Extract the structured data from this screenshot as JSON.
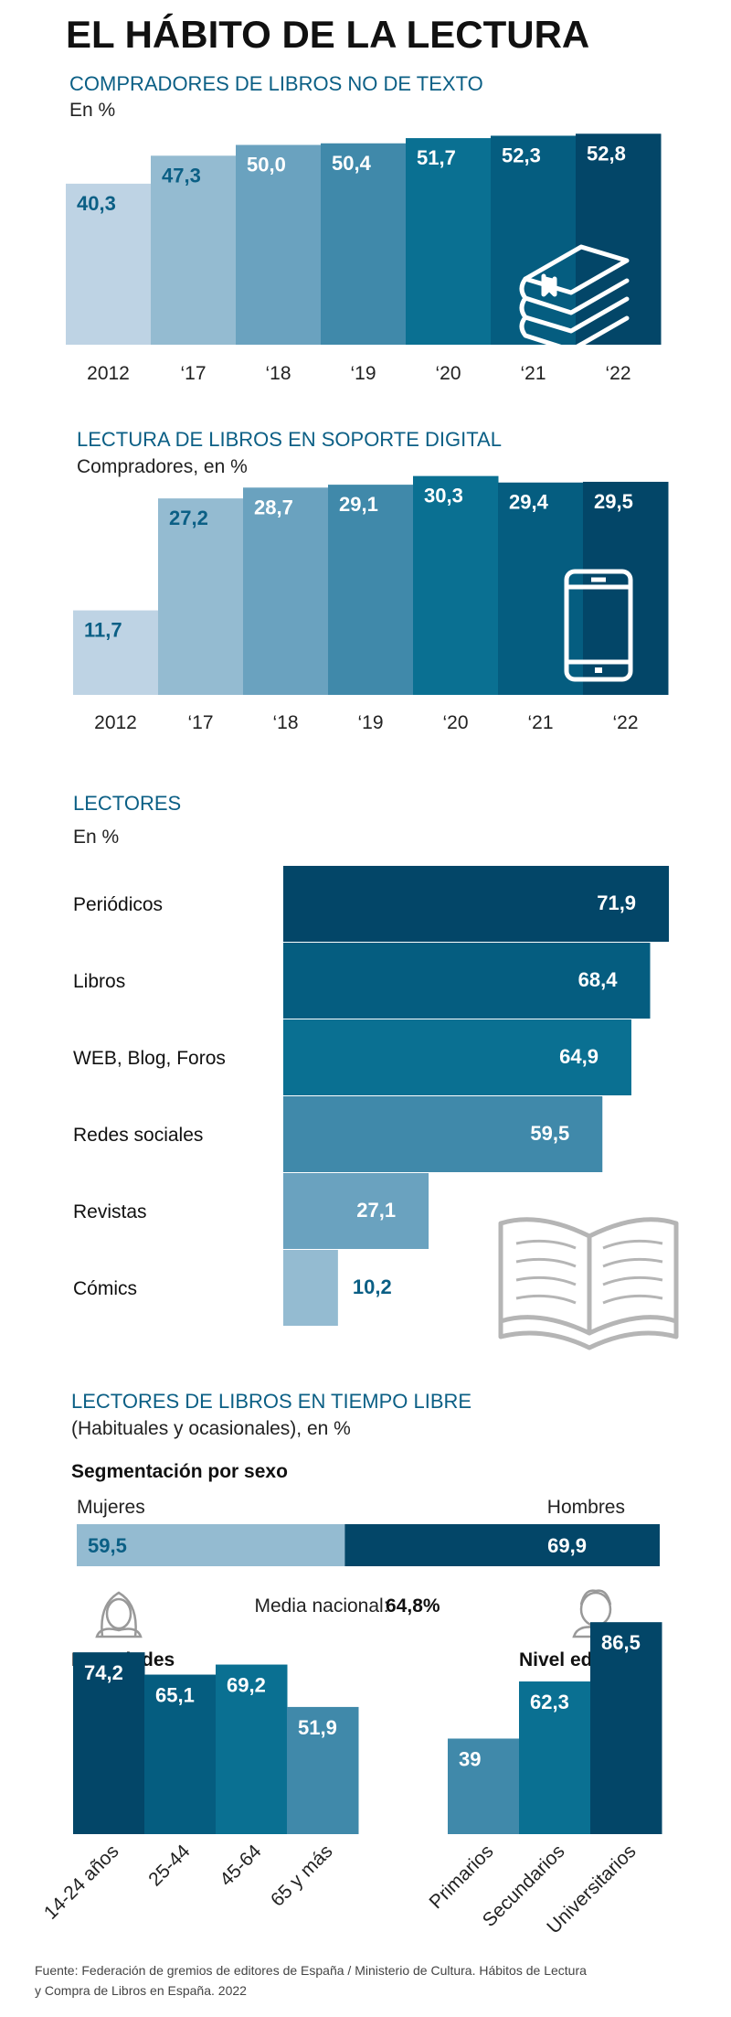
{
  "title": "EL HÁBITO DE LA LECTURA",
  "colors": [
    "#bed3e4",
    "#94bbd1",
    "#6aa2bf",
    "#4089aa",
    "#0a7092",
    "#055d80",
    "#034668"
  ],
  "chart_data": [
    {
      "type": "bar",
      "title": "COMPRADORES DE LIBROS NO DE TEXTO",
      "subtitle": "En %",
      "categories": [
        "2012",
        "‘17",
        "‘18",
        "‘19",
        "‘20",
        "‘21",
        "‘22"
      ],
      "values": [
        40.3,
        47.3,
        50.0,
        50.4,
        51.7,
        52.3,
        52.8
      ],
      "labels": [
        "40,3",
        "47,3",
        "50,0",
        "50,4",
        "51,7",
        "52,3",
        "52,8"
      ],
      "icon": "books-icon"
    },
    {
      "type": "bar",
      "title": "LECTURA DE LIBROS EN SOPORTE DIGITAL",
      "subtitle": "Compradores, en %",
      "categories": [
        "2012",
        "‘17",
        "‘18",
        "‘19",
        "‘20",
        "‘21",
        "‘22"
      ],
      "values": [
        11.7,
        27.2,
        28.7,
        29.1,
        30.3,
        29.4,
        29.5
      ],
      "labels": [
        "11,7",
        "27,2",
        "28,7",
        "29,1",
        "30,3",
        "29,4",
        "29,5"
      ],
      "icon": "smartphone-icon"
    },
    {
      "type": "bar",
      "orientation": "horizontal",
      "title": "LECTORES",
      "subtitle": "En %",
      "categories": [
        "Periódicos",
        "Libros",
        "WEB, Blog, Foros",
        "Redes sociales",
        "Revistas",
        "Cómics"
      ],
      "values": [
        71.9,
        68.4,
        64.9,
        59.5,
        27.1,
        10.2
      ],
      "labels": [
        "71,9",
        "68,4",
        "64,9",
        "59,5",
        "27,1",
        "10,2"
      ],
      "icon": "open-book-icon"
    },
    {
      "type": "bar",
      "orientation": "horizontal",
      "stacked": true,
      "title": "LECTORES DE LIBROS EN TIEMPO LIBRE",
      "subtitle": "(Habituales y ocasionales), en %",
      "heading": "Segmentación por sexo",
      "categories": [
        "Mujeres",
        "Hombres"
      ],
      "values": [
        59.5,
        69.9
      ],
      "labels": [
        "59,5",
        "69,9"
      ],
      "average_label": "Media nacional:",
      "average_value": "64,8%",
      "icons": [
        "woman-icon",
        "man-icon"
      ]
    },
    {
      "type": "bar",
      "title": "Por edades",
      "categories": [
        "14-24 años",
        "25-44",
        "45-64",
        "65 y más"
      ],
      "values": [
        74.2,
        65.1,
        69.2,
        51.9
      ],
      "labels": [
        "74,2",
        "65,1",
        "69,2",
        "51,9"
      ]
    },
    {
      "type": "bar",
      "title": "Nivel educativo",
      "categories": [
        "Primarios",
        "Secundarios",
        "Universitarios"
      ],
      "values": [
        39,
        62.3,
        86.5
      ],
      "labels": [
        "39",
        "62,3",
        "86,5"
      ]
    }
  ],
  "source": [
    "Fuente: Federación de gremios de editores de España / Ministerio de Cultura. Hábitos de Lectura",
    "y Compra de Libros en España. 2022"
  ]
}
